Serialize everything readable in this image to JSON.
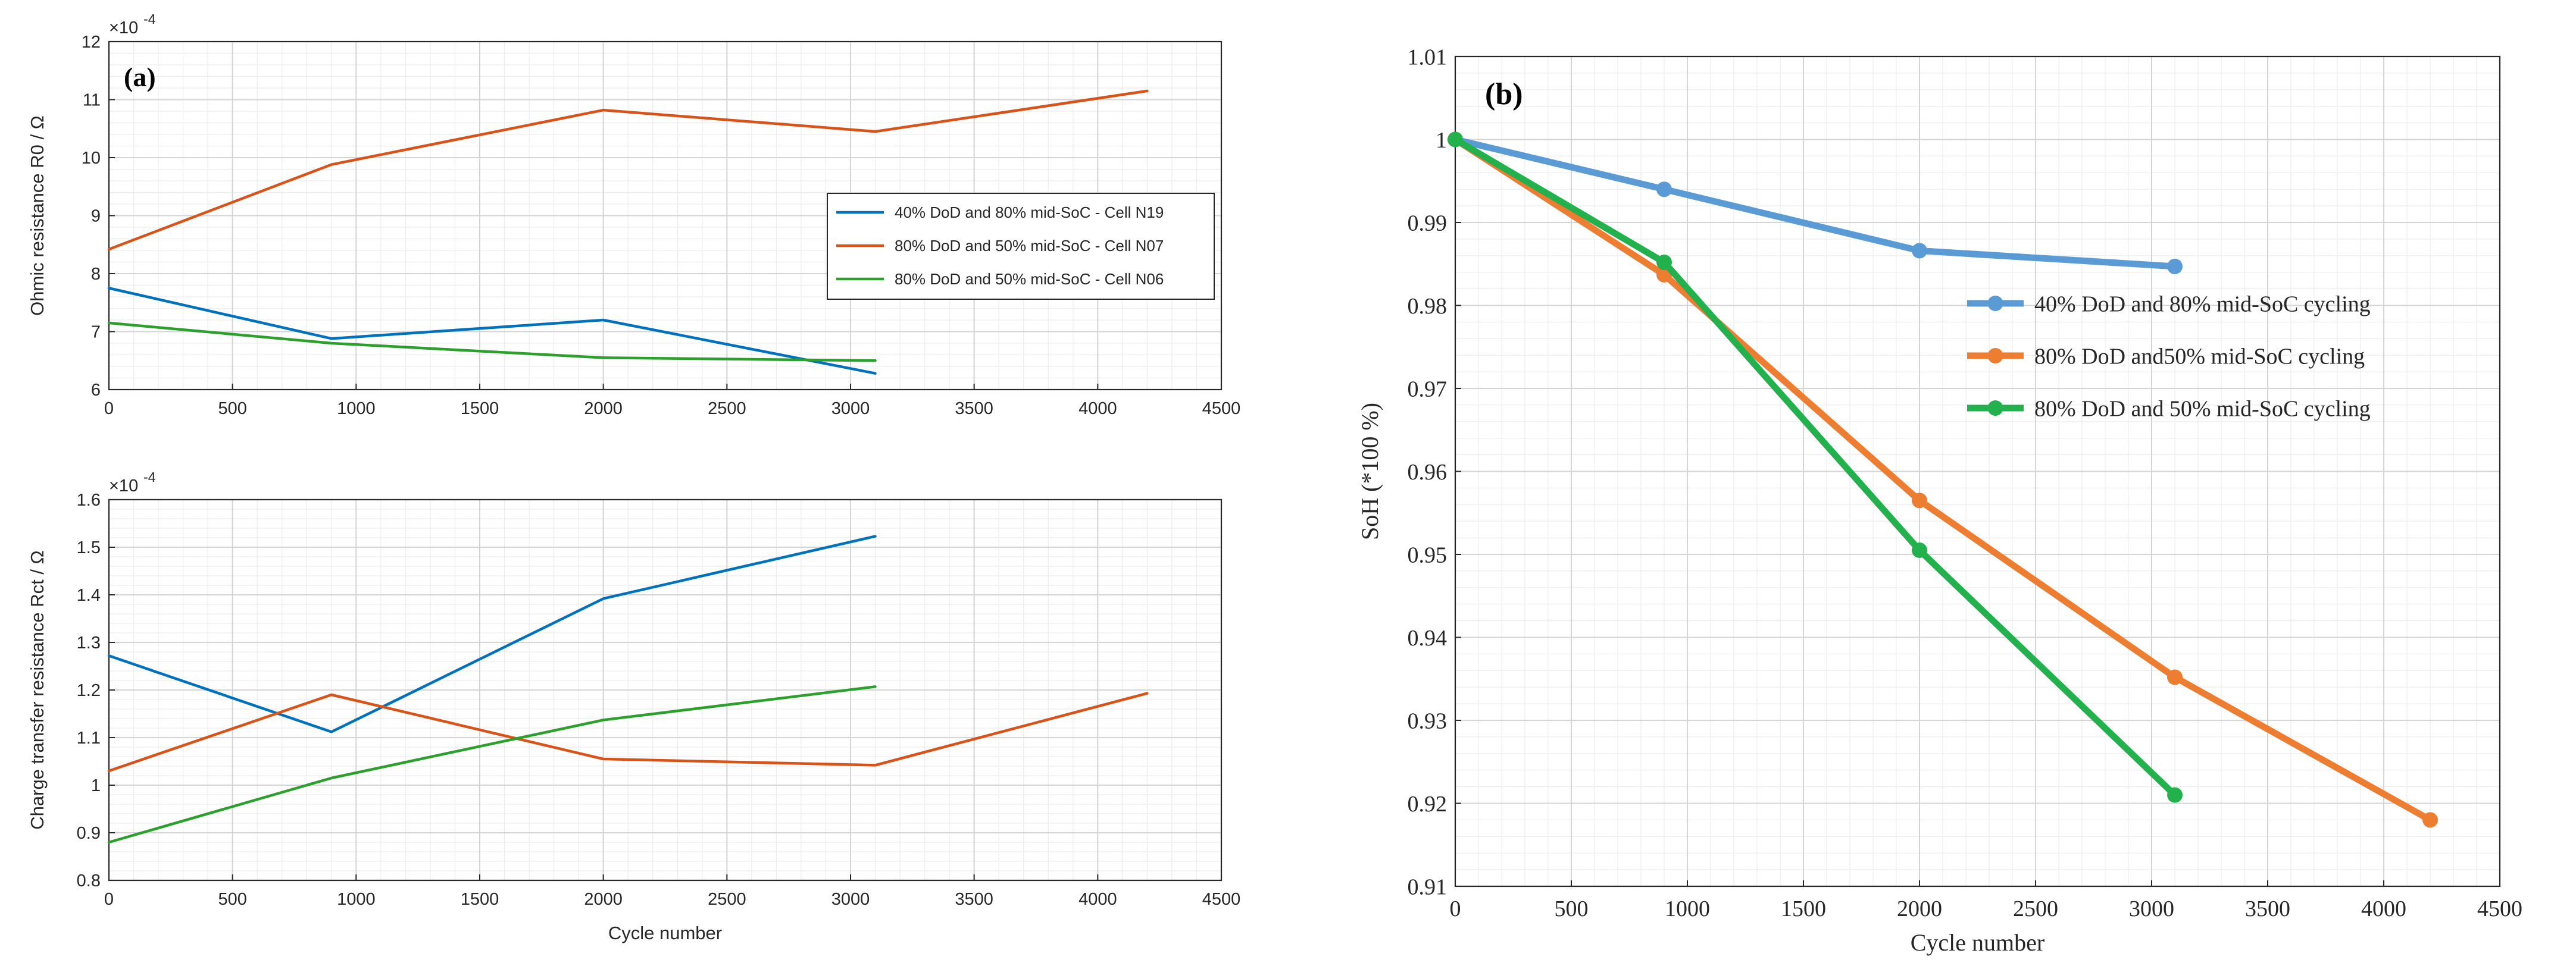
{
  "chart_data": [
    {
      "type": "line",
      "panel_label": "(a)",
      "title": "",
      "xlabel": "",
      "ylabel": "Ohmic resistance R0 / Ω",
      "exponent_label": "×10",
      "exponent_power": "-4",
      "xlim": [
        0,
        4500
      ],
      "ylim": [
        6,
        12
      ],
      "xticks": [
        "0",
        "500",
        "1000",
        "1500",
        "2000",
        "2500",
        "3000",
        "3500",
        "4000",
        "4500"
      ],
      "yticks": [
        "6",
        "7",
        "8",
        "9",
        "10",
        "11",
        "12"
      ],
      "grid": true,
      "legend_position": "right-middle",
      "series": [
        {
          "name": "40% DoD and 80% mid-SoC - Cell N19",
          "color": "#0072bd",
          "x": [
            0,
            900,
            2000,
            3100
          ],
          "y": [
            7.75,
            6.88,
            7.2,
            6.28
          ]
        },
        {
          "name": "80% DoD and 50% mid-SoC - Cell N07",
          "color": "#d95319",
          "x": [
            0,
            900,
            2000,
            3100,
            4200
          ],
          "y": [
            8.42,
            9.88,
            10.82,
            10.45,
            11.15
          ]
        },
        {
          "name": "80% DoD and 50% mid-SoC - Cell N06",
          "color": "#2ca02c",
          "x": [
            0,
            900,
            2000,
            3100
          ],
          "y": [
            7.15,
            6.8,
            6.55,
            6.5
          ]
        }
      ]
    },
    {
      "type": "line",
      "title": "",
      "xlabel": "Cycle number",
      "ylabel": "Charge transfer resistance Rct / Ω",
      "exponent_label": "×10",
      "exponent_power": "-4",
      "xlim": [
        0,
        4500
      ],
      "ylim": [
        0.8,
        1.6
      ],
      "xticks": [
        "0",
        "500",
        "1000",
        "1500",
        "2000",
        "2500",
        "3000",
        "3500",
        "4000",
        "4500"
      ],
      "yticks": [
        "0.8",
        "0.9",
        "1",
        "1.1",
        "1.2",
        "1.3",
        "1.4",
        "1.5",
        "1.6"
      ],
      "grid": true,
      "series": [
        {
          "name": "40% DoD and 80% mid-SoC - Cell N19",
          "color": "#0072bd",
          "x": [
            0,
            900,
            2000,
            3100
          ],
          "y": [
            1.272,
            1.112,
            1.392,
            1.523
          ]
        },
        {
          "name": "80% DoD and 50% mid-SoC - Cell N07",
          "color": "#d95319",
          "x": [
            0,
            900,
            2000,
            3100,
            4200
          ],
          "y": [
            1.03,
            1.19,
            1.055,
            1.042,
            1.193
          ]
        },
        {
          "name": "80% DoD and 50% mid-SoC - Cell N06",
          "color": "#2ca02c",
          "x": [
            0,
            900,
            2000,
            3100
          ],
          "y": [
            0.88,
            1.015,
            1.137,
            1.207
          ]
        }
      ]
    },
    {
      "type": "line",
      "panel_label": "(b)",
      "title": "",
      "xlabel": "Cycle number",
      "ylabel": "SoH (*100 %)",
      "xlim": [
        0,
        4500
      ],
      "ylim": [
        0.91,
        1.01
      ],
      "xticks": [
        "0",
        "500",
        "1000",
        "1500",
        "2000",
        "2500",
        "3000",
        "3500",
        "4000",
        "4500"
      ],
      "yticks": [
        "0.91",
        "0.92",
        "0.93",
        "0.94",
        "0.95",
        "0.96",
        "0.97",
        "0.98",
        "0.99",
        "1",
        "1.01"
      ],
      "grid": true,
      "legend_position": "right-middle",
      "series": [
        {
          "name": "40% DoD and 80% mid-SoC cycling",
          "color": "#5b9bd5",
          "x": [
            0,
            900,
            2000,
            3100
          ],
          "y": [
            1.0,
            0.994,
            0.9866,
            0.9847
          ]
        },
        {
          "name": "80% DoD and50% mid-SoC cycling",
          "color": "#ed7d31",
          "x": [
            0,
            900,
            2000,
            3100,
            4200
          ],
          "y": [
            1.0,
            0.9837,
            0.9565,
            0.9352,
            0.918
          ]
        },
        {
          "name": "80% DoD and 50% mid-SoC cycling",
          "color": "#22b14c",
          "x": [
            0,
            900,
            2000,
            3100
          ],
          "y": [
            1.0,
            0.9852,
            0.9505,
            0.921
          ]
        }
      ]
    }
  ]
}
